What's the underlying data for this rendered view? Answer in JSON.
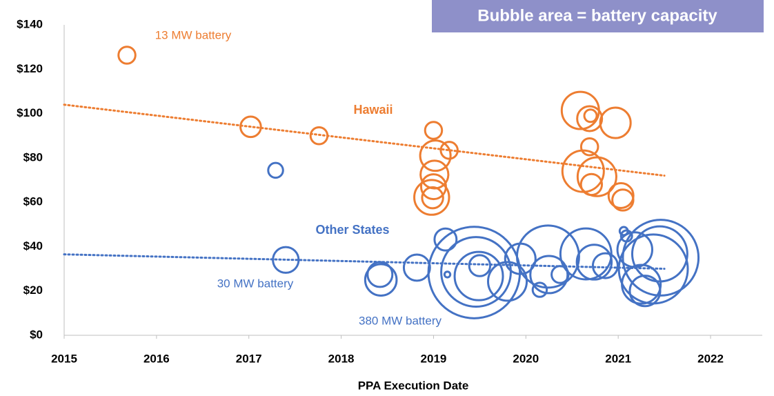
{
  "chart_data": {
    "type": "bubble",
    "x_label": "PPA Execution Date",
    "xlim": [
      2015,
      2022.56
    ],
    "xticks": [
      2015,
      2016,
      2017,
      2018,
      2019,
      2020,
      2021,
      2022
    ],
    "ylim": [
      0,
      140
    ],
    "yticks": [
      {
        "value": 0,
        "label": "$0"
      },
      {
        "value": 20,
        "label": "$20"
      },
      {
        "value": 40,
        "label": "$40"
      },
      {
        "value": 60,
        "label": "$60"
      },
      {
        "value": 80,
        "label": "$80"
      },
      {
        "value": 100,
        "label": "$100"
      },
      {
        "value": 120,
        "label": "$120"
      },
      {
        "value": 140,
        "label": "$140"
      }
    ],
    "grid": false,
    "annotations": [
      "Bubble area = battery capacity",
      "13 MW battery",
      "Hawaii",
      "Other States",
      "30 MW battery",
      "380 MW battery"
    ],
    "series": [
      {
        "name": "Hawaii",
        "color": "#ED7D31",
        "x": [
          2015.68,
          2017.02,
          2017.76,
          2019.0,
          2019.02,
          2019.17,
          2019.01,
          2019.0,
          2018.99,
          2018.98,
          2020.59,
          2020.69,
          2020.7,
          2020.97,
          2020.69,
          2020.62,
          2020.71,
          2020.77,
          2021.03,
          2021.05
        ],
        "values": [
          126.3,
          94,
          90,
          92.4,
          81,
          83.4,
          72.5,
          67,
          62,
          62.2,
          101.4,
          97.7,
          99,
          95.8,
          85,
          74,
          68,
          71.5,
          63,
          61
        ],
        "sizes": [
          13,
          19,
          13,
          13,
          42,
          13,
          35,
          28,
          20,
          55,
          63,
          28,
          7,
          42,
          13,
          78,
          20,
          68,
          28,
          20
        ],
        "trendline": {
          "x": [
            2015,
            2021.5
          ],
          "values": [
            104,
            72
          ]
        }
      },
      {
        "name": "Other States",
        "color": "#4472C4",
        "x": [
          2017.29,
          2017.4,
          2018.42,
          2018.43,
          2018.82,
          2019.13,
          2019.15,
          2019.44,
          2019.46,
          2019.5,
          2019.49,
          2019.8,
          2019.94,
          2020.15,
          2020.24,
          2020.25,
          2020.37,
          2020.65,
          2020.74,
          2020.86,
          2021.06,
          2021.09,
          2021.18,
          2021.25,
          2021.29,
          2021.38,
          2021.45,
          2021.46
        ],
        "values": [
          74.4,
          34,
          27.4,
          25,
          30.5,
          43.2,
          27.4,
          28.3,
          28.6,
          31.4,
          26.7,
          24.3,
          34.5,
          20.5,
          35.5,
          27.4,
          27.4,
          36.7,
          33,
          31.4,
          47,
          44.8,
          38.6,
          23,
          20,
          29.9,
          36.7,
          35
        ],
        "sizes": [
          10,
          30,
          28,
          45,
          31,
          22,
          1.5,
          380,
          220,
          20,
          106,
          68,
          42,
          9,
          175,
          63,
          13,
          118,
          55,
          28,
          3,
          5.5,
          55,
          68,
          42,
          216,
          138,
          260
        ],
        "trendline": {
          "x": [
            2015,
            2021.5
          ],
          "values": [
            36.5,
            30
          ]
        }
      }
    ]
  }
}
